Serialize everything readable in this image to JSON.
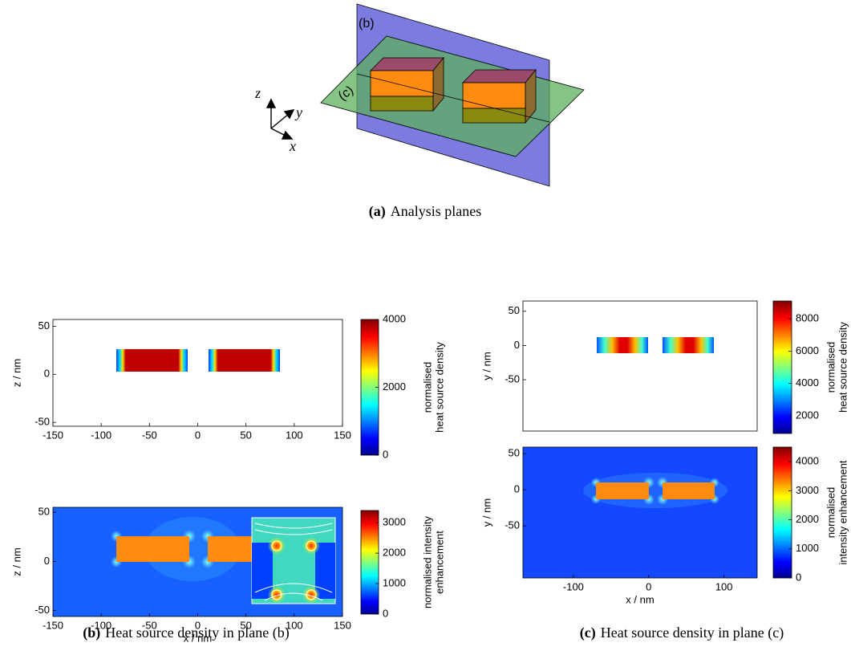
{
  "panel_a": {
    "caption_label": "(a)",
    "caption": "Analysis planes",
    "plane_b": "(b)",
    "plane_c": "(c)",
    "axis_z": "z",
    "axis_y": "y",
    "axis_x": "x"
  },
  "panel_b": {
    "caption_label": "(b)",
    "caption": "Heat source density in plane (b)",
    "top": {
      "ylabel": "z / nm",
      "xlim": [
        -150,
        150
      ],
      "xticks": [
        -150,
        -100,
        -50,
        0,
        50,
        100,
        150
      ],
      "ylim": [
        -54,
        57
      ],
      "yticks": [
        -50,
        0,
        50
      ],
      "colorbar": {
        "label": [
          "normalised",
          "heat source density"
        ],
        "lim": [
          0,
          4000
        ],
        "ticks": [
          0,
          2000,
          4000
        ]
      }
    },
    "bottom": {
      "xlabel": "x / nm",
      "ylabel": "z / nm",
      "xlim": [
        -150,
        150
      ],
      "xticks": [
        -150,
        -100,
        -50,
        0,
        50,
        100,
        150
      ],
      "ylim": [
        -56,
        55
      ],
      "yticks": [
        -50,
        0,
        50
      ],
      "colorbar": {
        "label": [
          "normalised intensity",
          "enhancement"
        ],
        "lim": [
          0,
          3400
        ],
        "ticks": [
          0,
          1000,
          2000,
          3000
        ]
      }
    }
  },
  "panel_c": {
    "caption_label": "(c)",
    "caption": "Heat source density in plane (c)",
    "top": {
      "ylabel": "y / nm",
      "ylim": [
        -125,
        65
      ],
      "yticks": [
        -50,
        0,
        50
      ],
      "colorbar": {
        "label": [
          "normalised",
          "heat source density"
        ],
        "lim": [
          900,
          9100
        ],
        "ticks": [
          2000,
          4000,
          6000,
          8000
        ]
      }
    },
    "bottom": {
      "xlabel": "x / nm",
      "ylabel": "y / nm",
      "xlim": [
        -167,
        144
      ],
      "xticks": [
        -100,
        0,
        100
      ],
      "ylim": [
        -122,
        59
      ],
      "yticks": [
        -50,
        0,
        50
      ],
      "colorbar": {
        "label": [
          "normalised",
          "intensity enhancement"
        ],
        "lim": [
          0,
          4500
        ],
        "ticks": [
          0,
          1000,
          2000,
          3000,
          4000
        ]
      }
    }
  }
}
